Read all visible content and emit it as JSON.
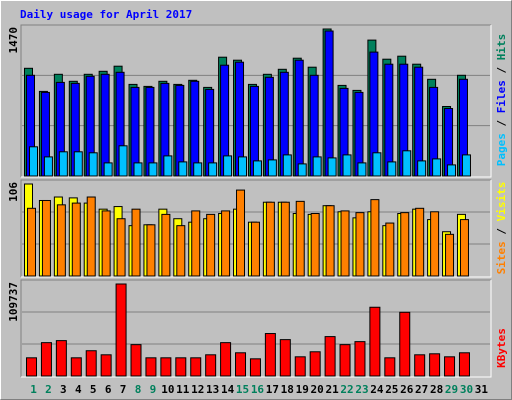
{
  "title": "Daily usage for April 2017",
  "legend_separator": " / ",
  "chart_data": [
    {
      "type": "bar",
      "ylim": [
        0,
        1470
      ],
      "yticks": [
        1470
      ],
      "series": [
        {
          "name": "Hits",
          "color": "#00805c",
          "values": [
            1077,
            846,
            1017,
            947,
            1017,
            1047,
            1098,
            916,
            896,
            947,
            916,
            957,
            886,
            1188,
            1158,
            916,
            1017,
            1067,
            1178,
            1088,
            1470,
            906,
            856,
            1359,
            1168,
            1198,
            1118,
            967,
            695,
            1007,
            null
          ]
        },
        {
          "name": "Files",
          "color": "#0000ff",
          "values": [
            1007,
            836,
            936,
            926,
            997,
            1017,
            1037,
            886,
            886,
            926,
            906,
            947,
            866,
            1108,
            1138,
            896,
            987,
            1037,
            1158,
            1007,
            1450,
            876,
            836,
            1239,
            1118,
            1118,
            1088,
            886,
            675,
            967,
            null
          ]
        },
        {
          "name": "Pages",
          "color": "#00c0ff",
          "values": [
            292,
            191,
            242,
            242,
            232,
            131,
            302,
            131,
            131,
            201,
            141,
            131,
            131,
            201,
            191,
            151,
            161,
            211,
            121,
            191,
            181,
            211,
            131,
            232,
            141,
            252,
            151,
            171,
            111,
            211,
            null
          ]
        }
      ]
    },
    {
      "type": "bar",
      "ylim": [
        0,
        106
      ],
      "yticks": [
        106
      ],
      "series": [
        {
          "name": "Visits",
          "color": "#ffff00",
          "values": [
            106,
            87,
            91,
            90,
            84,
            77,
            80,
            58,
            59,
            77,
            66,
            62,
            66,
            72,
            77,
            62,
            85,
            85,
            72,
            71,
            81,
            74,
            67,
            74,
            58,
            72,
            77,
            65,
            51,
            71,
            null
          ]
        },
        {
          "name": "Sites",
          "color": "#ff8000",
          "values": [
            78,
            87,
            82,
            84,
            91,
            75,
            66,
            77,
            59,
            71,
            58,
            75,
            71,
            75,
            99,
            62,
            85,
            85,
            86,
            72,
            81,
            75,
            73,
            88,
            61,
            73,
            78,
            74,
            48,
            65,
            null
          ]
        }
      ]
    },
    {
      "type": "bar",
      "ylim": [
        0,
        109737
      ],
      "yticks": [
        109737
      ],
      "categories": [
        "1",
        "2",
        "3",
        "4",
        "5",
        "6",
        "7",
        "8",
        "9",
        "10",
        "11",
        "12",
        "13",
        "14",
        "15",
        "16",
        "17",
        "18",
        "19",
        "20",
        "21",
        "22",
        "23",
        "24",
        "25",
        "26",
        "27",
        "28",
        "29",
        "30",
        "31"
      ],
      "category_colors": [
        "#00805c",
        "#00805c",
        "#000000",
        "#000000",
        "#000000",
        "#000000",
        "#000000",
        "#00805c",
        "#00805c",
        "#000000",
        "#000000",
        "#000000",
        "#000000",
        "#000000",
        "#00805c",
        "#00805c",
        "#000000",
        "#000000",
        "#000000",
        "#000000",
        "#000000",
        "#00805c",
        "#00805c",
        "#000000",
        "#000000",
        "#000000",
        "#000000",
        "#000000",
        "#00805c",
        "#00805c",
        "#000000"
      ],
      "series": [
        {
          "name": "KBytes",
          "color": "#ff0000",
          "values": [
            21700,
            39800,
            42200,
            21700,
            30150,
            25300,
            109737,
            37400,
            21700,
            21700,
            21700,
            21700,
            25300,
            39800,
            27700,
            20500,
            50650,
            43400,
            22900,
            28900,
            47000,
            37400,
            41000,
            82000,
            21700,
            76000,
            25300,
            26500,
            22900,
            27700,
            null
          ]
        }
      ]
    }
  ]
}
